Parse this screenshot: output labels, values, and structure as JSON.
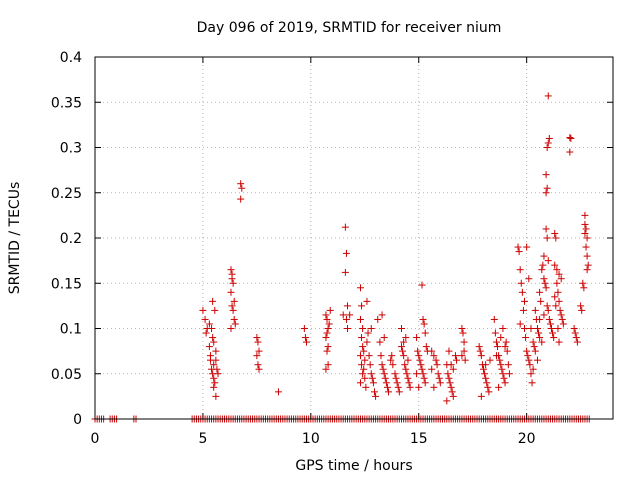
{
  "chart_data": {
    "type": "scatter",
    "title": "Day 096 of 2019, SRMTID for receiver nium",
    "xlabel": "GPS time / hours",
    "ylabel": "SRMTID / TECUs",
    "xlim": [
      0,
      24
    ],
    "ylim": [
      0,
      0.4
    ],
    "x_ticks": [
      0,
      5,
      10,
      15,
      20
    ],
    "x_tick_labels": [
      "0",
      "5",
      "10",
      "15",
      "20"
    ],
    "y_ticks": [
      0,
      0.05,
      0.1,
      0.15,
      0.2,
      0.25,
      0.3,
      0.35,
      0.4
    ],
    "y_tick_labels": [
      "0",
      "0.05",
      "0.1",
      "0.15",
      "0.2",
      "0.25",
      "0.3",
      "0.35",
      "0.4"
    ],
    "grid": true,
    "marker": "plus",
    "color": "#cc0000",
    "zero_band_ranges": [
      [
        0.0,
        0.4
      ],
      [
        0.7,
        1.0
      ],
      [
        1.8,
        1.9
      ],
      [
        4.5,
        22.9
      ]
    ],
    "series": [
      {
        "name": "SRMTID",
        "points": [
          [
            5.0,
            0.12
          ],
          [
            5.1,
            0.11
          ],
          [
            5.15,
            0.095
          ],
          [
            5.2,
            0.1
          ],
          [
            5.3,
            0.08
          ],
          [
            5.35,
            0.065
          ],
          [
            5.4,
            0.055
          ],
          [
            5.45,
            0.05
          ],
          [
            5.5,
            0.045
          ],
          [
            5.55,
            0.04
          ],
          [
            5.5,
            0.035
          ],
          [
            5.6,
            0.025
          ],
          [
            5.4,
            0.1
          ],
          [
            5.5,
            0.085
          ],
          [
            5.6,
            0.075
          ],
          [
            5.65,
            0.055
          ],
          [
            5.55,
            0.12
          ],
          [
            5.7,
            0.05
          ],
          [
            5.3,
            0.105
          ],
          [
            5.45,
            0.09
          ],
          [
            5.6,
            0.065
          ],
          [
            5.5,
            0.06
          ],
          [
            5.35,
            0.07
          ],
          [
            5.45,
            0.13
          ],
          [
            6.3,
            0.165
          ],
          [
            6.35,
            0.155
          ],
          [
            6.4,
            0.15
          ],
          [
            6.3,
            0.14
          ],
          [
            6.35,
            0.125
          ],
          [
            6.4,
            0.12
          ],
          [
            6.45,
            0.11
          ],
          [
            6.5,
            0.105
          ],
          [
            6.35,
            0.16
          ],
          [
            6.45,
            0.13
          ],
          [
            6.3,
            0.1
          ],
          [
            6.75,
            0.26
          ],
          [
            6.8,
            0.255
          ],
          [
            6.75,
            0.243
          ],
          [
            7.5,
            0.09
          ],
          [
            7.55,
            0.085
          ],
          [
            7.6,
            0.075
          ],
          [
            7.5,
            0.07
          ],
          [
            7.55,
            0.06
          ],
          [
            7.6,
            0.055
          ],
          [
            8.5,
            0.03
          ],
          [
            9.7,
            0.1
          ],
          [
            9.75,
            0.09
          ],
          [
            9.8,
            0.085
          ],
          [
            10.7,
            0.115
          ],
          [
            10.75,
            0.11
          ],
          [
            10.8,
            0.1
          ],
          [
            10.75,
            0.095
          ],
          [
            10.7,
            0.09
          ],
          [
            10.8,
            0.08
          ],
          [
            10.75,
            0.075
          ],
          [
            10.8,
            0.06
          ],
          [
            10.7,
            0.055
          ],
          [
            10.85,
            0.105
          ],
          [
            10.9,
            0.12
          ],
          [
            11.5,
            0.115
          ],
          [
            11.6,
            0.212
          ],
          [
            11.65,
            0.183
          ],
          [
            11.6,
            0.162
          ],
          [
            11.7,
            0.125
          ],
          [
            11.65,
            0.11
          ],
          [
            11.7,
            0.1
          ],
          [
            11.8,
            0.115
          ],
          [
            12.3,
            0.145
          ],
          [
            12.35,
            0.125
          ],
          [
            12.3,
            0.11
          ],
          [
            12.4,
            0.1
          ],
          [
            12.35,
            0.09
          ],
          [
            12.4,
            0.08
          ],
          [
            12.45,
            0.075
          ],
          [
            12.3,
            0.07
          ],
          [
            12.5,
            0.065
          ],
          [
            12.35,
            0.06
          ],
          [
            12.45,
            0.055
          ],
          [
            12.4,
            0.05
          ],
          [
            12.5,
            0.045
          ],
          [
            12.3,
            0.04
          ],
          [
            12.55,
            0.035
          ],
          [
            12.6,
            0.085
          ],
          [
            12.65,
            0.095
          ],
          [
            12.7,
            0.07
          ],
          [
            12.75,
            0.06
          ],
          [
            12.8,
            0.05
          ],
          [
            12.85,
            0.045
          ],
          [
            12.9,
            0.04
          ],
          [
            12.95,
            0.03
          ],
          [
            13.0,
            0.025
          ],
          [
            12.6,
            0.13
          ],
          [
            12.8,
            0.1
          ],
          [
            13.1,
            0.11
          ],
          [
            13.2,
            0.085
          ],
          [
            13.25,
            0.07
          ],
          [
            13.3,
            0.06
          ],
          [
            13.35,
            0.055
          ],
          [
            13.4,
            0.05
          ],
          [
            13.45,
            0.045
          ],
          [
            13.5,
            0.04
          ],
          [
            13.55,
            0.035
          ],
          [
            13.6,
            0.03
          ],
          [
            13.7,
            0.065
          ],
          [
            13.75,
            0.07
          ],
          [
            13.8,
            0.06
          ],
          [
            13.9,
            0.05
          ],
          [
            13.95,
            0.045
          ],
          [
            14.0,
            0.04
          ],
          [
            14.05,
            0.035
          ],
          [
            14.1,
            0.03
          ],
          [
            13.3,
            0.115
          ],
          [
            13.4,
            0.09
          ],
          [
            14.2,
            0.08
          ],
          [
            14.25,
            0.075
          ],
          [
            14.3,
            0.07
          ],
          [
            14.35,
            0.06
          ],
          [
            14.4,
            0.055
          ],
          [
            14.45,
            0.05
          ],
          [
            14.5,
            0.045
          ],
          [
            14.55,
            0.04
          ],
          [
            14.6,
            0.035
          ],
          [
            14.3,
            0.085
          ],
          [
            14.5,
            0.065
          ],
          [
            14.4,
            0.09
          ],
          [
            14.2,
            0.1
          ],
          [
            14.9,
            0.09
          ],
          [
            14.95,
            0.075
          ],
          [
            15.0,
            0.07
          ],
          [
            15.05,
            0.065
          ],
          [
            15.1,
            0.06
          ],
          [
            15.15,
            0.055
          ],
          [
            15.2,
            0.05
          ],
          [
            15.25,
            0.045
          ],
          [
            15.3,
            0.04
          ],
          [
            15.2,
            0.11
          ],
          [
            15.25,
            0.105
          ],
          [
            15.3,
            0.095
          ],
          [
            15.15,
            0.148
          ],
          [
            15.35,
            0.08
          ],
          [
            14.9,
            0.05
          ],
          [
            15.0,
            0.035
          ],
          [
            15.4,
            0.075
          ],
          [
            15.6,
            0.075
          ],
          [
            15.7,
            0.07
          ],
          [
            15.8,
            0.065
          ],
          [
            15.85,
            0.06
          ],
          [
            15.9,
            0.05
          ],
          [
            15.95,
            0.045
          ],
          [
            16.0,
            0.04
          ],
          [
            15.7,
            0.035
          ],
          [
            15.6,
            0.055
          ],
          [
            16.3,
            0.06
          ],
          [
            16.35,
            0.05
          ],
          [
            16.4,
            0.045
          ],
          [
            16.45,
            0.04
          ],
          [
            16.5,
            0.035
          ],
          [
            16.55,
            0.03
          ],
          [
            16.6,
            0.025
          ],
          [
            16.3,
            0.02
          ],
          [
            16.5,
            0.06
          ],
          [
            16.6,
            0.055
          ],
          [
            16.7,
            0.07
          ],
          [
            16.75,
            0.065
          ],
          [
            16.4,
            0.075
          ],
          [
            17.0,
            0.1
          ],
          [
            17.05,
            0.095
          ],
          [
            17.1,
            0.085
          ],
          [
            17.0,
            0.07
          ],
          [
            17.1,
            0.075
          ],
          [
            17.15,
            0.065
          ],
          [
            17.8,
            0.08
          ],
          [
            17.85,
            0.075
          ],
          [
            17.9,
            0.07
          ],
          [
            17.95,
            0.06
          ],
          [
            18.0,
            0.055
          ],
          [
            18.05,
            0.05
          ],
          [
            18.1,
            0.045
          ],
          [
            18.15,
            0.04
          ],
          [
            18.2,
            0.035
          ],
          [
            18.25,
            0.03
          ],
          [
            17.9,
            0.025
          ],
          [
            18.1,
            0.06
          ],
          [
            18.3,
            0.065
          ],
          [
            18.5,
            0.11
          ],
          [
            18.55,
            0.095
          ],
          [
            18.6,
            0.085
          ],
          [
            18.65,
            0.08
          ],
          [
            18.7,
            0.07
          ],
          [
            18.75,
            0.065
          ],
          [
            18.8,
            0.06
          ],
          [
            18.85,
            0.055
          ],
          [
            18.9,
            0.05
          ],
          [
            18.95,
            0.045
          ],
          [
            19.0,
            0.04
          ],
          [
            18.6,
            0.07
          ],
          [
            18.8,
            0.09
          ],
          [
            18.9,
            0.1
          ],
          [
            19.0,
            0.08
          ],
          [
            19.05,
            0.085
          ],
          [
            19.1,
            0.075
          ],
          [
            19.15,
            0.06
          ],
          [
            19.2,
            0.05
          ],
          [
            18.7,
            0.035
          ],
          [
            19.6,
            0.19
          ],
          [
            19.65,
            0.185
          ],
          [
            19.7,
            0.165
          ],
          [
            19.75,
            0.15
          ],
          [
            19.8,
            0.14
          ],
          [
            19.85,
            0.12
          ],
          [
            19.9,
            0.1
          ],
          [
            19.95,
            0.09
          ],
          [
            20.0,
            0.075
          ],
          [
            20.05,
            0.07
          ],
          [
            20.1,
            0.065
          ],
          [
            20.15,
            0.06
          ],
          [
            20.2,
            0.05
          ],
          [
            20.25,
            0.04
          ],
          [
            19.7,
            0.105
          ],
          [
            19.9,
            0.13
          ],
          [
            20.0,
            0.19
          ],
          [
            20.1,
            0.155
          ],
          [
            20.2,
            0.1
          ],
          [
            20.3,
            0.085
          ],
          [
            20.35,
            0.08
          ],
          [
            20.4,
            0.12
          ],
          [
            20.45,
            0.11
          ],
          [
            20.5,
            0.1
          ],
          [
            20.55,
            0.095
          ],
          [
            20.6,
            0.14
          ],
          [
            20.65,
            0.13
          ],
          [
            20.7,
            0.165
          ],
          [
            20.75,
            0.17
          ],
          [
            20.8,
            0.155
          ],
          [
            20.85,
            0.15
          ],
          [
            20.9,
            0.145
          ],
          [
            20.95,
            0.125
          ],
          [
            21.0,
            0.12
          ],
          [
            21.05,
            0.11
          ],
          [
            20.9,
            0.21
          ],
          [
            20.95,
            0.2
          ],
          [
            21.0,
            0.175
          ],
          [
            20.8,
            0.18
          ],
          [
            21.1,
            0.105
          ],
          [
            21.15,
            0.1
          ],
          [
            21.2,
            0.095
          ],
          [
            21.25,
            0.09
          ],
          [
            20.6,
            0.09
          ],
          [
            20.7,
            0.085
          ],
          [
            20.4,
            0.075
          ],
          [
            20.5,
            0.065
          ],
          [
            20.3,
            0.055
          ],
          [
            20.6,
            0.11
          ],
          [
            20.8,
            0.115
          ],
          [
            21.0,
            0.357
          ],
          [
            21.05,
            0.31
          ],
          [
            21.0,
            0.305
          ],
          [
            20.95,
            0.3
          ],
          [
            20.9,
            0.27
          ],
          [
            20.95,
            0.255
          ],
          [
            20.9,
            0.25
          ],
          [
            21.3,
            0.205
          ],
          [
            21.35,
            0.2
          ],
          [
            21.4,
            0.15
          ],
          [
            21.45,
            0.14
          ],
          [
            21.5,
            0.13
          ],
          [
            21.55,
            0.12
          ],
          [
            21.6,
            0.115
          ],
          [
            21.65,
            0.11
          ],
          [
            21.7,
            0.105
          ],
          [
            21.3,
            0.17
          ],
          [
            21.4,
            0.165
          ],
          [
            21.5,
            0.16
          ],
          [
            21.6,
            0.155
          ],
          [
            21.35,
            0.125
          ],
          [
            21.45,
            0.1
          ],
          [
            21.5,
            0.085
          ],
          [
            21.3,
            0.135
          ],
          [
            22.0,
            0.311
          ],
          [
            22.05,
            0.31
          ],
          [
            22.0,
            0.295
          ],
          [
            22.2,
            0.1
          ],
          [
            22.25,
            0.095
          ],
          [
            22.3,
            0.09
          ],
          [
            22.35,
            0.085
          ],
          [
            22.5,
            0.125
          ],
          [
            22.55,
            0.12
          ],
          [
            22.6,
            0.15
          ],
          [
            22.65,
            0.145
          ],
          [
            22.7,
            0.215
          ],
          [
            22.75,
            0.21
          ],
          [
            22.7,
            0.205
          ],
          [
            22.8,
            0.2
          ],
          [
            22.75,
            0.19
          ],
          [
            22.8,
            0.18
          ],
          [
            22.85,
            0.17
          ],
          [
            22.7,
            0.225
          ],
          [
            22.8,
            0.165
          ]
        ]
      }
    ]
  }
}
